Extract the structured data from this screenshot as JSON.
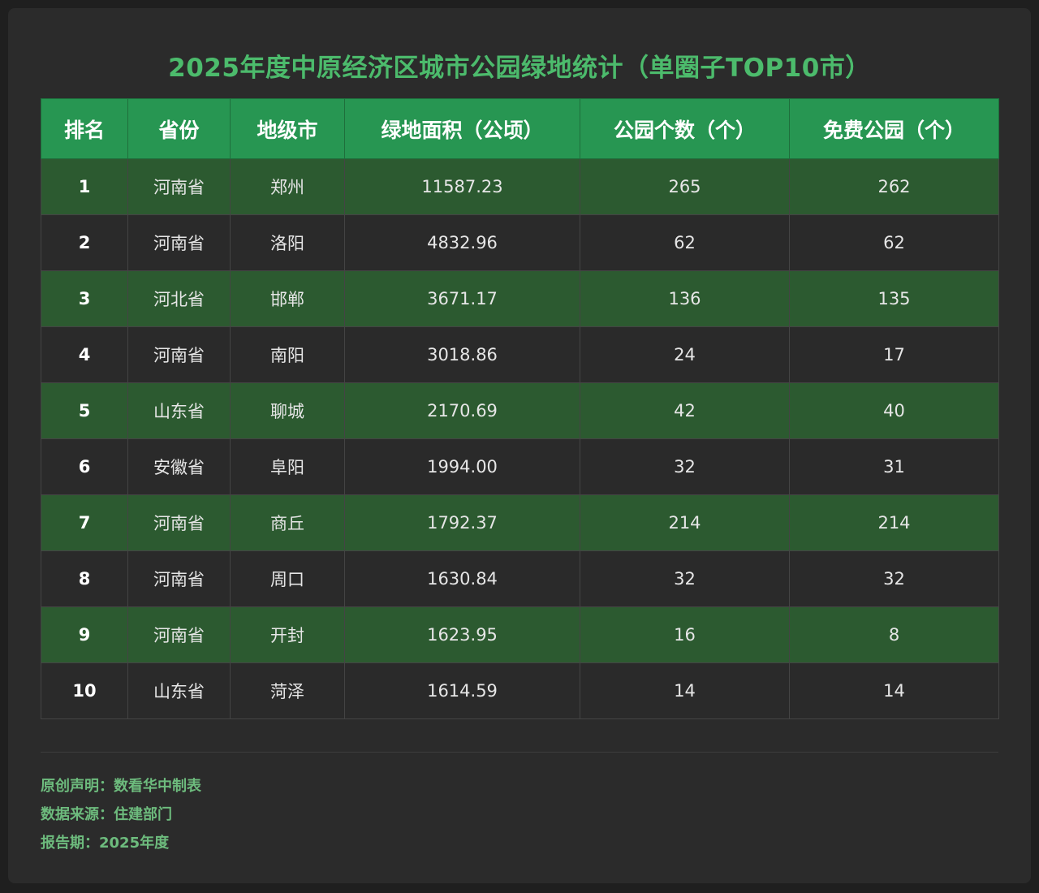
{
  "title": "2025年度中原经济区城市公园绿地统计（单圈子TOP10市）",
  "table": {
    "headers": [
      "排名",
      "省份",
      "地级市",
      "绿地面积（公顷）",
      "公园个数（个）",
      "免费公园（个）"
    ],
    "rows": [
      [
        "1",
        "河南省",
        "郑州",
        "11587.23",
        "265",
        "262"
      ],
      [
        "2",
        "河南省",
        "洛阳",
        "4832.96",
        "62",
        "62"
      ],
      [
        "3",
        "河北省",
        "邯郸",
        "3671.17",
        "136",
        "135"
      ],
      [
        "4",
        "河南省",
        "南阳",
        "3018.86",
        "24",
        "17"
      ],
      [
        "5",
        "山东省",
        "聊城",
        "2170.69",
        "42",
        "40"
      ],
      [
        "6",
        "安徽省",
        "阜阳",
        "1994.00",
        "32",
        "31"
      ],
      [
        "7",
        "河南省",
        "商丘",
        "1792.37",
        "214",
        "214"
      ],
      [
        "8",
        "河南省",
        "周口",
        "1630.84",
        "32",
        "32"
      ],
      [
        "9",
        "河南省",
        "开封",
        "1623.95",
        "16",
        "8"
      ],
      [
        "10",
        "山东省",
        "菏泽",
        "1614.59",
        "14",
        "14"
      ]
    ]
  },
  "footer": {
    "original": "原创声明：数看华中制表",
    "source": "数据来源：住建部门",
    "period": "报告期：2025年度"
  },
  "colors": {
    "title": "#4cbb6c",
    "header_bg": "#279652",
    "row_green": "#2c5a30",
    "row_dark": "#2a2a2a",
    "footer_text": "#6dbb7d"
  }
}
